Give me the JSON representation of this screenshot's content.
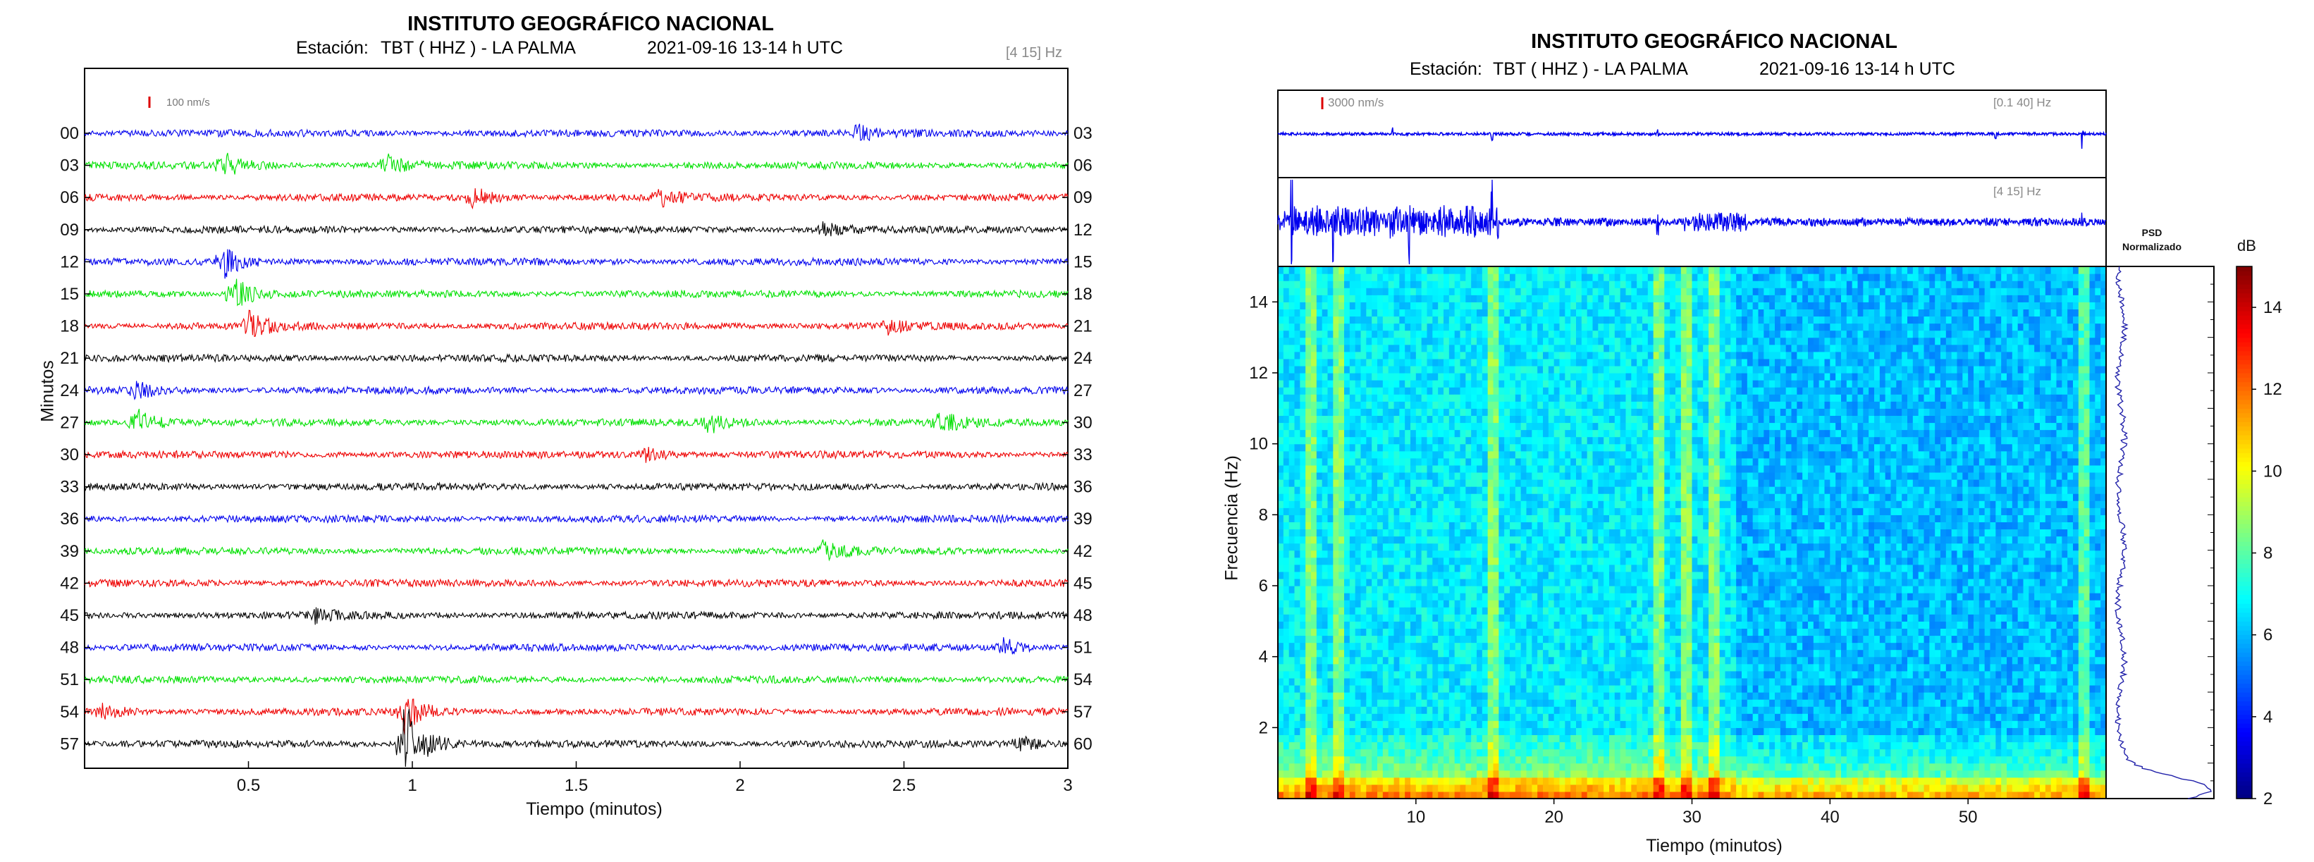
{
  "left_panel": {
    "title": "INSTITUTO GEOGRÁFICO NACIONAL",
    "station_label": "Estación:",
    "station_value": "TBT ( HHZ ) - LA PALMA",
    "date_time": "2021-09-16  13-14 h UTC",
    "filter_band": "[4 15] Hz",
    "scale_bar_label": "100 nm/s"
  },
  "right_panel": {
    "title": "INSTITUTO GEOGRÁFICO NACIONAL",
    "station_label": "Estación:",
    "station_value": "TBT ( HHZ ) - LA PALMA",
    "date_time": "2021-09-16  13-14 h UTC",
    "trace1_filter": "[0.1 40]  Hz",
    "trace1_scale": "3000 nm/s",
    "trace2_filter": "[4 15]  Hz",
    "psd_label_line1": "PSD",
    "psd_label_line2": "Normalizado",
    "colorbar_unit": "dB"
  },
  "colors": {
    "blue": "#0000ee",
    "green": "#00e000",
    "red": "#ee0000",
    "black": "#000000",
    "scale_red": "#dd0000"
  },
  "chart_data": [
    {
      "type": "line",
      "name": "helicorder",
      "xlabel": "Tiempo (minutos)",
      "ylabel": "Minutos",
      "xlim": [
        0,
        3
      ],
      "x_ticks": [
        "0.5",
        "1",
        "1.5",
        "2",
        "2.5",
        "3"
      ],
      "x_tick_values": [
        0.5,
        1,
        1.5,
        2,
        2.5,
        3
      ],
      "row_labels_left": [
        "00",
        "03",
        "06",
        "09",
        "12",
        "15",
        "18",
        "21",
        "24",
        "27",
        "30",
        "33",
        "36",
        "39",
        "42",
        "45",
        "48",
        "51",
        "54",
        "57"
      ],
      "row_labels_right": [
        "03",
        "06",
        "09",
        "12",
        "15",
        "18",
        "21",
        "24",
        "27",
        "30",
        "33",
        "36",
        "39",
        "42",
        "45",
        "48",
        "51",
        "54",
        "57",
        "60"
      ],
      "row_colors": [
        "blue",
        "green",
        "red",
        "black",
        "blue",
        "green",
        "red",
        "black",
        "blue",
        "green",
        "red",
        "black",
        "blue",
        "green",
        "red",
        "black",
        "blue",
        "green",
        "red",
        "black"
      ],
      "events": [
        {
          "row": 0,
          "t": 2.35,
          "amp": 1.4
        },
        {
          "row": 1,
          "t": 0.42,
          "amp": 2.0
        },
        {
          "row": 1,
          "t": 0.92,
          "amp": 1.6
        },
        {
          "row": 2,
          "t": 1.18,
          "amp": 1.8
        },
        {
          "row": 2,
          "t": 1.75,
          "amp": 1.5
        },
        {
          "row": 3,
          "t": 2.25,
          "amp": 1.2
        },
        {
          "row": 4,
          "t": 0.42,
          "amp": 2.5
        },
        {
          "row": 5,
          "t": 0.45,
          "amp": 3.0
        },
        {
          "row": 6,
          "t": 0.5,
          "amp": 2.2
        },
        {
          "row": 6,
          "t": 2.45,
          "amp": 1.0
        },
        {
          "row": 8,
          "t": 0.15,
          "amp": 1.5
        },
        {
          "row": 9,
          "t": 0.15,
          "amp": 2.6
        },
        {
          "row": 9,
          "t": 1.9,
          "amp": 1.8
        },
        {
          "row": 9,
          "t": 2.6,
          "amp": 2.0
        },
        {
          "row": 10,
          "t": 1.7,
          "amp": 1.3
        },
        {
          "row": 13,
          "t": 2.25,
          "amp": 1.6
        },
        {
          "row": 15,
          "t": 0.7,
          "amp": 1.0
        },
        {
          "row": 16,
          "t": 2.8,
          "amp": 1.4
        },
        {
          "row": 18,
          "t": 0.05,
          "amp": 1.3
        },
        {
          "row": 18,
          "t": 0.97,
          "amp": 3.5
        },
        {
          "row": 19,
          "t": 0.97,
          "amp": 8.0
        },
        {
          "row": 19,
          "t": 2.85,
          "amp": 1.5
        }
      ]
    },
    {
      "type": "line",
      "name": "trace-broadband",
      "xlim": [
        0,
        60
      ],
      "spikes_minutes": [
        8.3,
        15.5,
        27.5,
        52.0,
        58.3
      ]
    },
    {
      "type": "line",
      "name": "trace-filtered",
      "xlim": [
        0,
        60
      ],
      "noisy_until_minutes": 16,
      "spikes_minutes": [
        1.0,
        4.0,
        9.5,
        15.5,
        27.5,
        29.5,
        58.3
      ]
    },
    {
      "type": "heatmap",
      "name": "spectrogram",
      "xlabel": "Tiempo (minutos)",
      "ylabel": "Frecuencia (Hz)",
      "xlim": [
        0,
        60
      ],
      "ylim": [
        0,
        15
      ],
      "x_ticks": [
        10,
        20,
        30,
        40,
        50
      ],
      "y_ticks": [
        2,
        4,
        6,
        8,
        10,
        12,
        14
      ],
      "zlim": [
        2,
        15
      ],
      "colorbar_ticks": [
        2,
        4,
        6,
        8,
        10,
        12,
        14
      ],
      "bright_columns_minutes": [
        2.5,
        4.5,
        15.5,
        27.5,
        29.5,
        31.5,
        58.3
      ],
      "quiet_region_minutes": [
        33,
        60
      ]
    },
    {
      "type": "line",
      "name": "psd-normalized",
      "ylim": [
        0,
        15
      ]
    }
  ]
}
